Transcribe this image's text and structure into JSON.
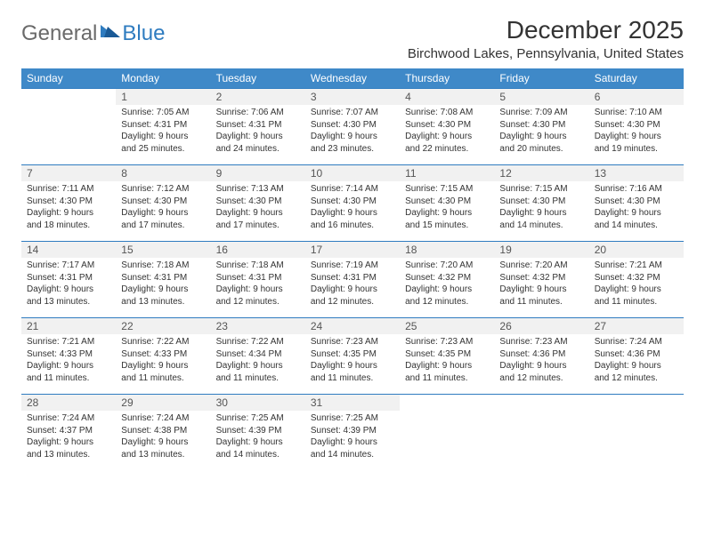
{
  "brand": {
    "general": "General",
    "blue": "Blue"
  },
  "title": "December 2025",
  "location": "Birchwood Lakes, Pennsylvania, United States",
  "colors": {
    "header_bg": "#3f89c8",
    "header_text": "#ffffff",
    "border": "#2f7cc0",
    "daynum_bg": "#f1f1f1",
    "logo_gray": "#6a6a6a",
    "logo_blue": "#2f7cc0",
    "background": "#ffffff",
    "text": "#333333"
  },
  "day_headers": [
    "Sunday",
    "Monday",
    "Tuesday",
    "Wednesday",
    "Thursday",
    "Friday",
    "Saturday"
  ],
  "weeks": [
    [
      {
        "n": "",
        "lines": []
      },
      {
        "n": "1",
        "lines": [
          "Sunrise: 7:05 AM",
          "Sunset: 4:31 PM",
          "Daylight: 9 hours and 25 minutes."
        ]
      },
      {
        "n": "2",
        "lines": [
          "Sunrise: 7:06 AM",
          "Sunset: 4:31 PM",
          "Daylight: 9 hours and 24 minutes."
        ]
      },
      {
        "n": "3",
        "lines": [
          "Sunrise: 7:07 AM",
          "Sunset: 4:30 PM",
          "Daylight: 9 hours and 23 minutes."
        ]
      },
      {
        "n": "4",
        "lines": [
          "Sunrise: 7:08 AM",
          "Sunset: 4:30 PM",
          "Daylight: 9 hours and 22 minutes."
        ]
      },
      {
        "n": "5",
        "lines": [
          "Sunrise: 7:09 AM",
          "Sunset: 4:30 PM",
          "Daylight: 9 hours and 20 minutes."
        ]
      },
      {
        "n": "6",
        "lines": [
          "Sunrise: 7:10 AM",
          "Sunset: 4:30 PM",
          "Daylight: 9 hours and 19 minutes."
        ]
      }
    ],
    [
      {
        "n": "7",
        "lines": [
          "Sunrise: 7:11 AM",
          "Sunset: 4:30 PM",
          "Daylight: 9 hours and 18 minutes."
        ]
      },
      {
        "n": "8",
        "lines": [
          "Sunrise: 7:12 AM",
          "Sunset: 4:30 PM",
          "Daylight: 9 hours and 17 minutes."
        ]
      },
      {
        "n": "9",
        "lines": [
          "Sunrise: 7:13 AM",
          "Sunset: 4:30 PM",
          "Daylight: 9 hours and 17 minutes."
        ]
      },
      {
        "n": "10",
        "lines": [
          "Sunrise: 7:14 AM",
          "Sunset: 4:30 PM",
          "Daylight: 9 hours and 16 minutes."
        ]
      },
      {
        "n": "11",
        "lines": [
          "Sunrise: 7:15 AM",
          "Sunset: 4:30 PM",
          "Daylight: 9 hours and 15 minutes."
        ]
      },
      {
        "n": "12",
        "lines": [
          "Sunrise: 7:15 AM",
          "Sunset: 4:30 PM",
          "Daylight: 9 hours and 14 minutes."
        ]
      },
      {
        "n": "13",
        "lines": [
          "Sunrise: 7:16 AM",
          "Sunset: 4:30 PM",
          "Daylight: 9 hours and 14 minutes."
        ]
      }
    ],
    [
      {
        "n": "14",
        "lines": [
          "Sunrise: 7:17 AM",
          "Sunset: 4:31 PM",
          "Daylight: 9 hours and 13 minutes."
        ]
      },
      {
        "n": "15",
        "lines": [
          "Sunrise: 7:18 AM",
          "Sunset: 4:31 PM",
          "Daylight: 9 hours and 13 minutes."
        ]
      },
      {
        "n": "16",
        "lines": [
          "Sunrise: 7:18 AM",
          "Sunset: 4:31 PM",
          "Daylight: 9 hours and 12 minutes."
        ]
      },
      {
        "n": "17",
        "lines": [
          "Sunrise: 7:19 AM",
          "Sunset: 4:31 PM",
          "Daylight: 9 hours and 12 minutes."
        ]
      },
      {
        "n": "18",
        "lines": [
          "Sunrise: 7:20 AM",
          "Sunset: 4:32 PM",
          "Daylight: 9 hours and 12 minutes."
        ]
      },
      {
        "n": "19",
        "lines": [
          "Sunrise: 7:20 AM",
          "Sunset: 4:32 PM",
          "Daylight: 9 hours and 11 minutes."
        ]
      },
      {
        "n": "20",
        "lines": [
          "Sunrise: 7:21 AM",
          "Sunset: 4:32 PM",
          "Daylight: 9 hours and 11 minutes."
        ]
      }
    ],
    [
      {
        "n": "21",
        "lines": [
          "Sunrise: 7:21 AM",
          "Sunset: 4:33 PM",
          "Daylight: 9 hours and 11 minutes."
        ]
      },
      {
        "n": "22",
        "lines": [
          "Sunrise: 7:22 AM",
          "Sunset: 4:33 PM",
          "Daylight: 9 hours and 11 minutes."
        ]
      },
      {
        "n": "23",
        "lines": [
          "Sunrise: 7:22 AM",
          "Sunset: 4:34 PM",
          "Daylight: 9 hours and 11 minutes."
        ]
      },
      {
        "n": "24",
        "lines": [
          "Sunrise: 7:23 AM",
          "Sunset: 4:35 PM",
          "Daylight: 9 hours and 11 minutes."
        ]
      },
      {
        "n": "25",
        "lines": [
          "Sunrise: 7:23 AM",
          "Sunset: 4:35 PM",
          "Daylight: 9 hours and 11 minutes."
        ]
      },
      {
        "n": "26",
        "lines": [
          "Sunrise: 7:23 AM",
          "Sunset: 4:36 PM",
          "Daylight: 9 hours and 12 minutes."
        ]
      },
      {
        "n": "27",
        "lines": [
          "Sunrise: 7:24 AM",
          "Sunset: 4:36 PM",
          "Daylight: 9 hours and 12 minutes."
        ]
      }
    ],
    [
      {
        "n": "28",
        "lines": [
          "Sunrise: 7:24 AM",
          "Sunset: 4:37 PM",
          "Daylight: 9 hours and 13 minutes."
        ]
      },
      {
        "n": "29",
        "lines": [
          "Sunrise: 7:24 AM",
          "Sunset: 4:38 PM",
          "Daylight: 9 hours and 13 minutes."
        ]
      },
      {
        "n": "30",
        "lines": [
          "Sunrise: 7:25 AM",
          "Sunset: 4:39 PM",
          "Daylight: 9 hours and 14 minutes."
        ]
      },
      {
        "n": "31",
        "lines": [
          "Sunrise: 7:25 AM",
          "Sunset: 4:39 PM",
          "Daylight: 9 hours and 14 minutes."
        ]
      },
      {
        "n": "",
        "lines": []
      },
      {
        "n": "",
        "lines": []
      },
      {
        "n": "",
        "lines": []
      }
    ]
  ]
}
